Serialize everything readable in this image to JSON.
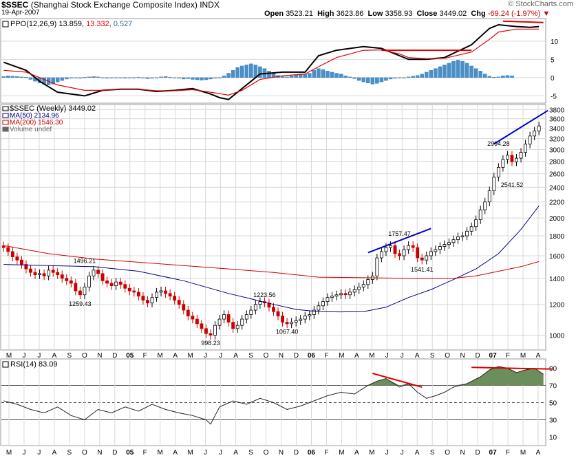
{
  "header": {
    "symbol": "$SSEC",
    "name": "(Shanghai Stock Exchange Composite Index)",
    "exchange": "INDX",
    "date": "19-Apr-2007",
    "open_label": "Open",
    "open": "3523.21",
    "high_label": "High",
    "high": "3623.86",
    "low_label": "Low",
    "low": "3358.93",
    "close_label": "Close",
    "close": "3449.02",
    "chg_label": "Chg",
    "chg": "-69.24 (-1.97%)",
    "brand": "© StockCharts.com"
  },
  "colors": {
    "up": "#ffffff",
    "down": "#cc0000",
    "black": "#000000",
    "red": "#dd0000",
    "ma50": "#000080",
    "ma200": "#cc0000",
    "hist": "#4a90c8",
    "rsifill": "#6b8e5a",
    "trend_red": "#dd0000",
    "trend_blue": "#0000cc",
    "grid": "#d8d8d8"
  },
  "chart_data": [
    {
      "type": "line",
      "title": "PPO(12,26,9) 13.859, 13.332, 0.527",
      "legend": {
        "name": "PPO(12,26,9)",
        "ppo": "13.859",
        "signal": "13.332",
        "hist": "0.527"
      },
      "y_ticks": [
        "10",
        "5",
        "0",
        "-5"
      ],
      "ylim": [
        -7,
        16
      ],
      "x_index_range": [
        0,
        120
      ],
      "series": [
        {
          "name": "PPO",
          "color": "#000000",
          "points": [
            [
              0,
              4.2
            ],
            [
              5,
              2
            ],
            [
              8,
              -1
            ],
            [
              12,
              -4
            ],
            [
              18,
              -5
            ],
            [
              22,
              -3.5
            ],
            [
              26,
              -3.2
            ],
            [
              30,
              -3.2
            ],
            [
              34,
              -3.8
            ],
            [
              38,
              -3.5
            ],
            [
              42,
              -3
            ],
            [
              46,
              -4.5
            ],
            [
              48,
              -5.5
            ],
            [
              50,
              -6
            ],
            [
              53,
              -3
            ],
            [
              57,
              1
            ],
            [
              62,
              1.5
            ],
            [
              67,
              1.5
            ],
            [
              70,
              6
            ],
            [
              74,
              7.5
            ],
            [
              80,
              8.5
            ],
            [
              84,
              8
            ],
            [
              88,
              6
            ],
            [
              90,
              5
            ],
            [
              94,
              5
            ],
            [
              98,
              5.5
            ],
            [
              104,
              9
            ],
            [
              108,
              13.5
            ],
            [
              110,
              14.5
            ],
            [
              114,
              14
            ],
            [
              117,
              13.8
            ],
            [
              119,
              14
            ]
          ]
        },
        {
          "name": "Signal",
          "color": "#dd0000",
          "points": [
            [
              0,
              2
            ],
            [
              5,
              1.5
            ],
            [
              8,
              0
            ],
            [
              12,
              -2
            ],
            [
              18,
              -3.5
            ],
            [
              22,
              -3.5
            ],
            [
              26,
              -3.2
            ],
            [
              30,
              -3.2
            ],
            [
              34,
              -3.6
            ],
            [
              38,
              -3.6
            ],
            [
              42,
              -3.3
            ],
            [
              46,
              -4
            ],
            [
              50,
              -4.8
            ],
            [
              53,
              -3.5
            ],
            [
              57,
              -0.5
            ],
            [
              62,
              0.5
            ],
            [
              67,
              1
            ],
            [
              70,
              3
            ],
            [
              74,
              5.5
            ],
            [
              80,
              7.5
            ],
            [
              84,
              7.6
            ],
            [
              88,
              6.5
            ],
            [
              90,
              5.5
            ],
            [
              94,
              5.2
            ],
            [
              98,
              5.3
            ],
            [
              104,
              7
            ],
            [
              108,
              10.5
            ],
            [
              110,
              12.5
            ],
            [
              114,
              13.3
            ],
            [
              117,
              13.3
            ],
            [
              119,
              13.3
            ]
          ]
        }
      ],
      "histogram": [
        0.3,
        0.5,
        0.4,
        0.3,
        0.2,
        0.1,
        -0.5,
        -1,
        -1.5,
        -1.8,
        -2,
        -1.8,
        -1.2,
        -0.8,
        -0.4,
        -0.2,
        0,
        -0.2,
        0.1,
        0.2,
        0.3,
        0.2,
        0,
        -0.2,
        -0.1,
        0,
        -0.1,
        -0.2,
        -0.1,
        0,
        0.1,
        -0.1,
        -0.3,
        -0.2,
        0,
        0.2,
        0.3,
        0.1,
        0,
        -0.2,
        -0.4,
        -0.3,
        -0.5,
        -0.6,
        -0.7,
        -0.6,
        -0.4,
        -0.2,
        0,
        0.5,
        1.2,
        2,
        2.8,
        3.2,
        3.5,
        3.8,
        3.5,
        3,
        2.5,
        1.8,
        1.2,
        0.6,
        0.3,
        0.2,
        0.5,
        0.8,
        1,
        0.9,
        1.2,
        2,
        2.5,
        2.2,
        1.8,
        1.5,
        1.2,
        1,
        0.5,
        0.2,
        -0.3,
        -0.8,
        -1.2,
        -1.5,
        -1.8,
        -1.6,
        -1.2,
        -0.8,
        -0.4,
        -0.2,
        -0.1,
        0,
        0.2,
        0.4,
        0.6,
        1,
        1.5,
        2,
        2.5,
        3,
        3.5,
        4,
        4.5,
        4.8,
        4.5,
        4,
        3.2,
        2.5,
        1.8,
        1,
        0.4,
        0.1,
        0.2,
        0.5,
        0.6,
        0.5
      ],
      "trendline": [
        [
          84,
          7.5
        ],
        [
          104,
          7.5
        ]
      ],
      "trendline2": [
        [
          112,
          16
        ],
        [
          119,
          15.5
        ]
      ]
    },
    {
      "type": "candlestick",
      "title": "$SSEC (Weekly) 3449.02",
      "legend": [
        {
          "label": "$SSEC (Weekly) 3449.02",
          "color": "#000000"
        },
        {
          "label": "MA(50) 2134.96",
          "color": "#000080"
        },
        {
          "label": "MA(200) 1546.30",
          "color": "#cc0000"
        },
        {
          "label": "Volume undef",
          "color": "#666666"
        }
      ],
      "y_scale": "log",
      "ylim": [
        920,
        3900
      ],
      "y_ticks": [
        1000,
        1200,
        1400,
        1600,
        1800,
        2000,
        2200,
        2400,
        2600,
        2800,
        3000,
        3200,
        3400,
        3600,
        3800
      ],
      "x_labels": [
        "M",
        "J",
        "J",
        "A",
        "S",
        "O",
        "N",
        "D",
        "05",
        "F",
        "M",
        "A",
        "M",
        "J",
        "J",
        "A",
        "S",
        "O",
        "N",
        "D",
        "06",
        "F",
        "M",
        "A",
        "M",
        "J",
        "J",
        "A",
        "S",
        "O",
        "N",
        "D",
        "07",
        "F",
        "M",
        "A"
      ],
      "closes": [
        1680,
        1640,
        1590,
        1560,
        1520,
        1480,
        1450,
        1430,
        1440,
        1420,
        1470,
        1450,
        1430,
        1400,
        1380,
        1360,
        1300,
        1270,
        1330,
        1420,
        1470,
        1440,
        1380,
        1360,
        1340,
        1370,
        1350,
        1320,
        1300,
        1290,
        1260,
        1230,
        1210,
        1250,
        1290,
        1300,
        1280,
        1260,
        1230,
        1200,
        1160,
        1120,
        1100,
        1070,
        1040,
        1010,
        1000,
        1060,
        1100,
        1130,
        1080,
        1040,
        1060,
        1100,
        1130,
        1160,
        1200,
        1220,
        1210,
        1180,
        1150,
        1120,
        1080,
        1070,
        1080,
        1090,
        1100,
        1120,
        1130,
        1160,
        1190,
        1220,
        1250,
        1260,
        1270,
        1280,
        1270,
        1290,
        1310,
        1330,
        1350,
        1390,
        1420,
        1580,
        1640,
        1680,
        1700,
        1620,
        1600,
        1660,
        1700,
        1680,
        1580,
        1560,
        1600,
        1640,
        1660,
        1690,
        1710,
        1730,
        1760,
        1790,
        1800,
        1850,
        1900,
        1980,
        2100,
        2200,
        2350,
        2550,
        2700,
        2830,
        2900,
        2790,
        2850,
        2950,
        3100,
        3250,
        3350,
        3450
      ],
      "ma50": [
        [
          0,
          1520
        ],
        [
          20,
          1500
        ],
        [
          30,
          1460
        ],
        [
          40,
          1380
        ],
        [
          50,
          1280
        ],
        [
          55,
          1240
        ],
        [
          60,
          1200
        ],
        [
          65,
          1165
        ],
        [
          70,
          1150
        ],
        [
          75,
          1148
        ],
        [
          80,
          1150
        ],
        [
          85,
          1180
        ],
        [
          90,
          1250
        ],
        [
          95,
          1310
        ],
        [
          100,
          1390
        ],
        [
          105,
          1480
        ],
        [
          110,
          1620
        ],
        [
          115,
          1870
        ],
        [
          119,
          2150
        ]
      ],
      "ma200": [
        [
          0,
          1700
        ],
        [
          10,
          1620
        ],
        [
          20,
          1570
        ],
        [
          30,
          1540
        ],
        [
          40,
          1510
        ],
        [
          50,
          1480
        ],
        [
          60,
          1450
        ],
        [
          65,
          1430
        ],
        [
          70,
          1410
        ],
        [
          80,
          1405
        ],
        [
          90,
          1400
        ],
        [
          100,
          1400
        ],
        [
          105,
          1420
        ],
        [
          110,
          1460
        ],
        [
          115,
          1500
        ],
        [
          119,
          1546
        ]
      ],
      "annotations": [
        {
          "text": "1496.21",
          "i": 18,
          "v": 1496.21
        },
        {
          "text": "1259.43",
          "i": 17,
          "v": 1259.43
        },
        {
          "text": "998.23",
          "i": 46,
          "v": 998.23
        },
        {
          "text": "1223.56",
          "i": 58,
          "v": 1223.56
        },
        {
          "text": "1067.40",
          "i": 63,
          "v": 1067.4
        },
        {
          "text": "1757.47",
          "i": 88,
          "v": 1757.47
        },
        {
          "text": "1541.41",
          "i": 93,
          "v": 1541.41
        },
        {
          "text": "2994.28",
          "i": 110,
          "v": 2994.28
        },
        {
          "text": "2541.52",
          "i": 113,
          "v": 2541.52
        }
      ],
      "trendline": [
        [
          81,
          1630
        ],
        [
          95,
          1880
        ]
      ],
      "trendline2": [
        [
          109,
          3100
        ],
        [
          121,
          3780
        ]
      ]
    },
    {
      "type": "line",
      "title": "RSI(14) 83.09",
      "legend": "RSI(14) 83.09",
      "y_ticks": [
        90,
        70,
        50,
        30,
        10
      ],
      "ylim": [
        0,
        100
      ],
      "guides": [
        70,
        50,
        30
      ],
      "points": [
        [
          0,
          52
        ],
        [
          3,
          48
        ],
        [
          6,
          42
        ],
        [
          9,
          38
        ],
        [
          12,
          45
        ],
        [
          15,
          35
        ],
        [
          18,
          30
        ],
        [
          21,
          42
        ],
        [
          24,
          38
        ],
        [
          27,
          45
        ],
        [
          30,
          40
        ],
        [
          33,
          48
        ],
        [
          36,
          42
        ],
        [
          39,
          38
        ],
        [
          42,
          35
        ],
        [
          45,
          30
        ],
        [
          46,
          25
        ],
        [
          48,
          45
        ],
        [
          51,
          52
        ],
        [
          54,
          48
        ],
        [
          57,
          55
        ],
        [
          60,
          50
        ],
        [
          63,
          42
        ],
        [
          66,
          46
        ],
        [
          69,
          52
        ],
        [
          72,
          58
        ],
        [
          75,
          62
        ],
        [
          78,
          60
        ],
        [
          81,
          70
        ],
        [
          83,
          75
        ],
        [
          85,
          78
        ],
        [
          88,
          68
        ],
        [
          90,
          72
        ],
        [
          92,
          62
        ],
        [
          94,
          55
        ],
        [
          96,
          58
        ],
        [
          98,
          62
        ],
        [
          100,
          68
        ],
        [
          103,
          72
        ],
        [
          106,
          80
        ],
        [
          108,
          88
        ],
        [
          110,
          92
        ],
        [
          112,
          90
        ],
        [
          114,
          85
        ],
        [
          116,
          88
        ],
        [
          118,
          90
        ],
        [
          120,
          83
        ]
      ],
      "trendline": [
        [
          82,
          84
        ],
        [
          93,
          68
        ]
      ],
      "trendline2": [
        [
          104,
          91
        ],
        [
          122,
          89
        ]
      ]
    }
  ]
}
